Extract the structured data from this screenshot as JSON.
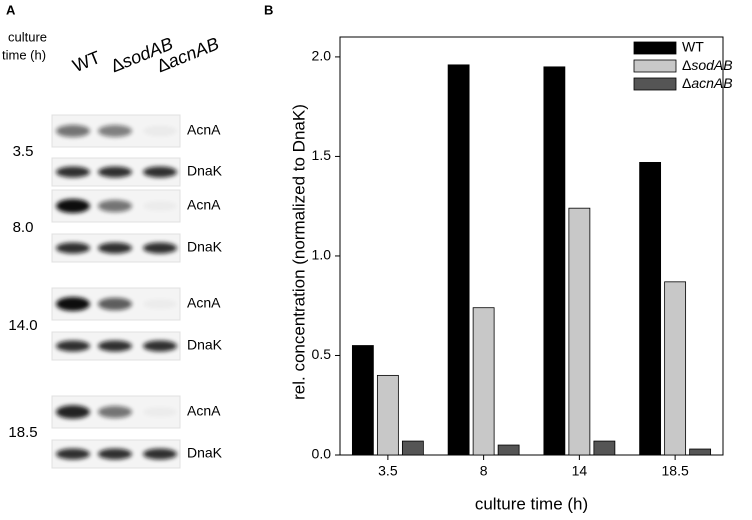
{
  "panel_labels": [
    "A",
    "B"
  ],
  "blot": {
    "header": [
      "culture",
      "time (h)"
    ],
    "lanes": [
      "WT",
      "ΔsodAB",
      "ΔacnAB"
    ],
    "rows": [
      {
        "time": "3.5",
        "bands": [
          "AcnA",
          "DnaK"
        ]
      },
      {
        "time": "8.0",
        "bands": [
          "AcnA",
          "DnaK"
        ]
      },
      {
        "time": "14.0",
        "bands": [
          "AcnA",
          "DnaK"
        ]
      },
      {
        "time": "18.5",
        "bands": [
          "AcnA",
          "DnaK"
        ]
      }
    ]
  },
  "chart_data": {
    "type": "bar",
    "x_label": "culture time (h)",
    "y_label": "rel. concentration (normalized to DnaK)",
    "categories": [
      "3.5",
      "8",
      "14",
      "18.5"
    ],
    "series": [
      {
        "name": "WT",
        "color": "#000000",
        "values": [
          0.55,
          1.96,
          1.95,
          1.47
        ]
      },
      {
        "name": "ΔsodAB",
        "color": "#c8c8c8",
        "values": [
          0.4,
          0.74,
          1.24,
          0.87
        ]
      },
      {
        "name": "ΔacnAB",
        "color": "#555555",
        "values": [
          0.07,
          0.05,
          0.07,
          0.03
        ]
      }
    ],
    "ylim": [
      0,
      2.1
    ],
    "yticks": [
      {
        "value": 0,
        "label": "0.0"
      },
      0.5,
      {
        "value": 1,
        "label": "1.0"
      },
      1.5,
      {
        "value": 2,
        "label": "2.0"
      }
    ],
    "legend": "upper right",
    "grid": false
  }
}
